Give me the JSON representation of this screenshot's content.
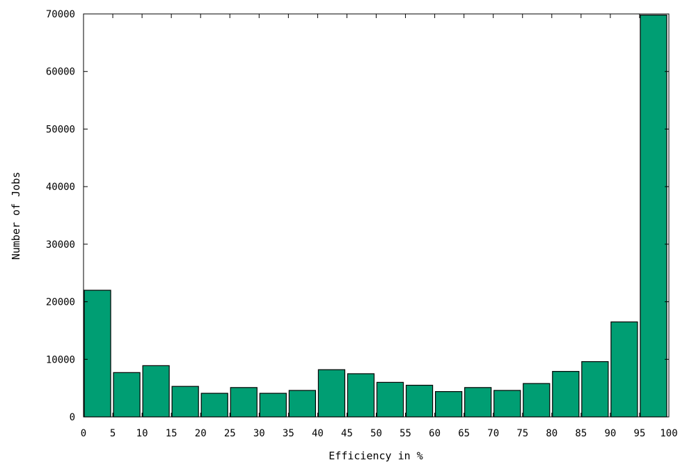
{
  "chart_data": {
    "type": "bar",
    "title": "",
    "xlabel": "Efficiency in %",
    "ylabel": "Number of Jobs",
    "bin_edges": [
      0,
      5,
      10,
      15,
      20,
      25,
      30,
      35,
      40,
      45,
      50,
      55,
      60,
      65,
      70,
      75,
      80,
      85,
      90,
      95,
      100
    ],
    "values": [
      22000,
      7700,
      8900,
      5300,
      4100,
      5100,
      4100,
      4600,
      8200,
      7500,
      6000,
      5500,
      4400,
      5100,
      4600,
      5800,
      7900,
      9600,
      16500,
      69800
    ],
    "x_ticks": [
      0,
      5,
      10,
      15,
      20,
      25,
      30,
      35,
      40,
      45,
      50,
      55,
      60,
      65,
      70,
      75,
      80,
      85,
      90,
      95,
      100
    ],
    "y_ticks": [
      0,
      10000,
      20000,
      30000,
      40000,
      50000,
      60000,
      70000
    ],
    "xlim": [
      0,
      100
    ],
    "ylim": [
      0,
      70000
    ],
    "grid": false,
    "legend": "none",
    "bar_color": "#009e73",
    "bar_edge_color": "#000000"
  }
}
